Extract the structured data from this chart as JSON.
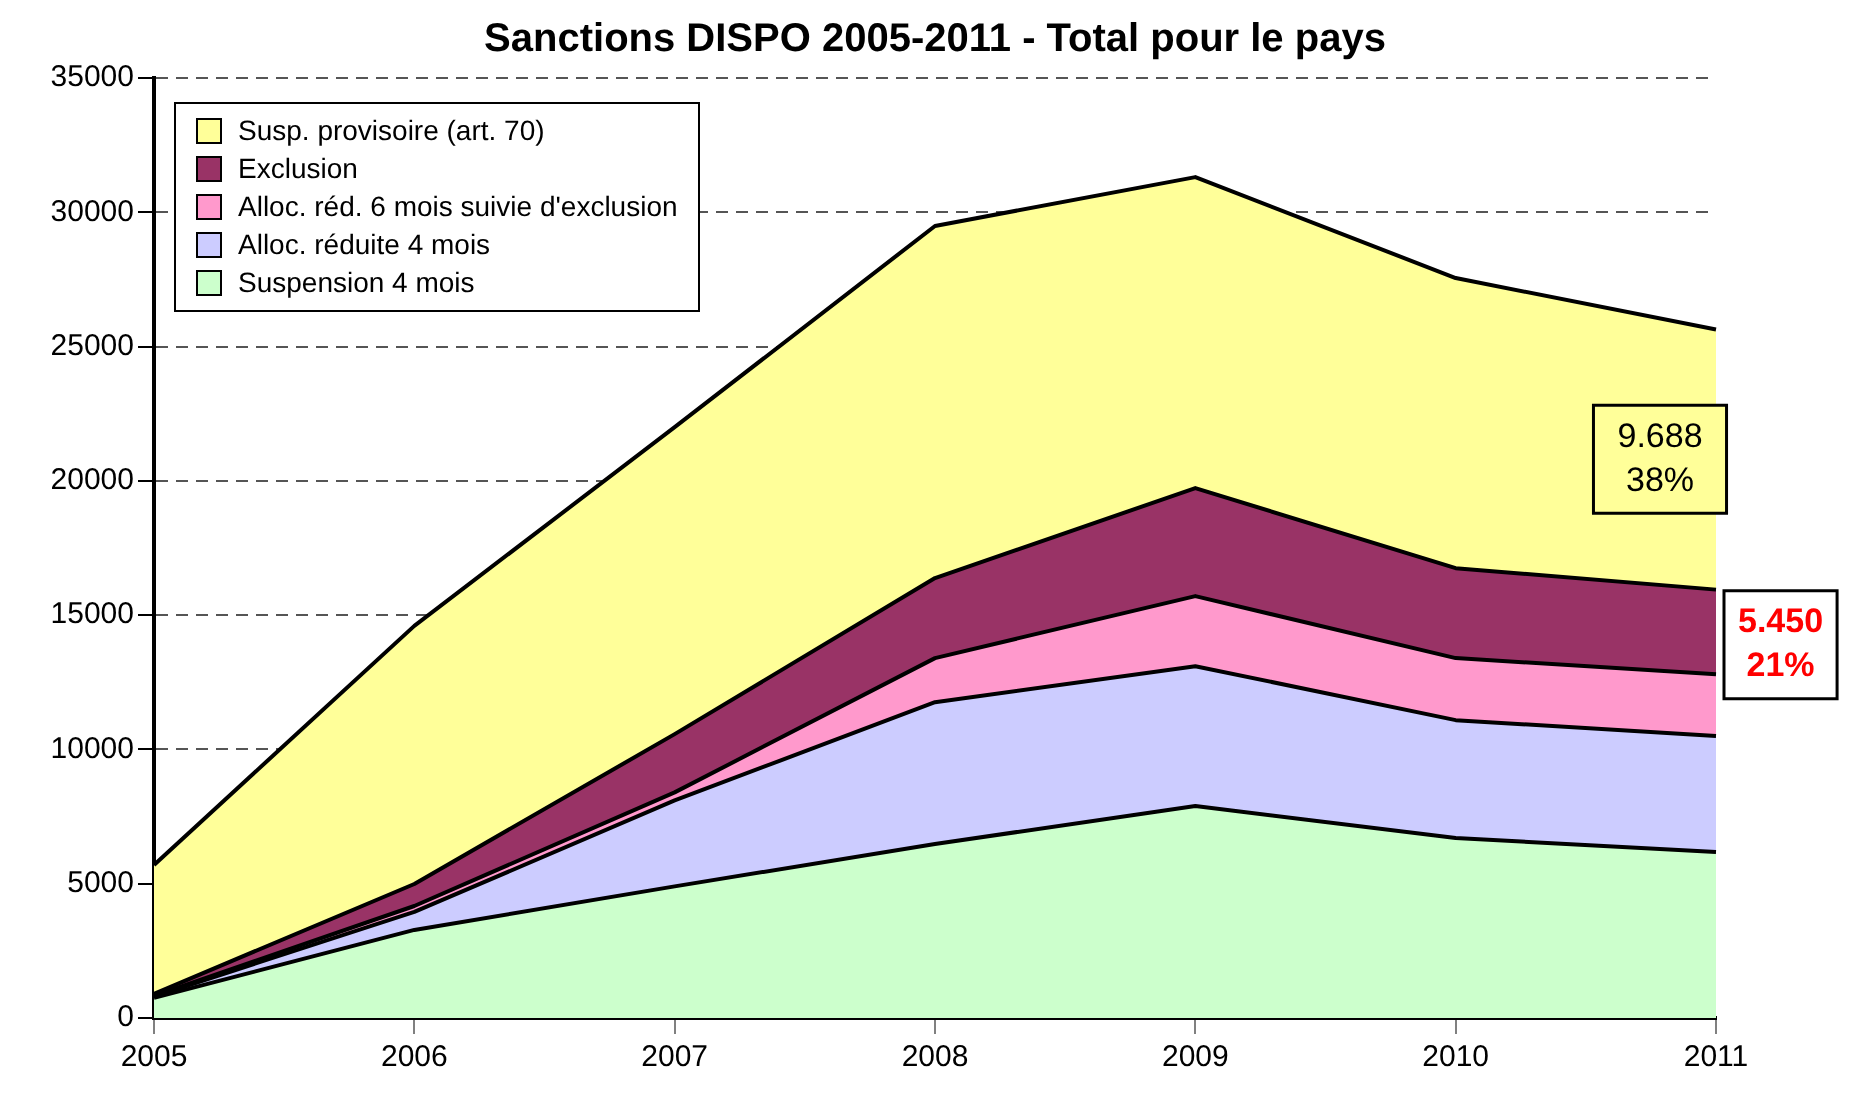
{
  "chart_data": {
    "type": "area",
    "title": "Sanctions DISPO 2005-2011 - Total pour le pays",
    "stacked": true,
    "categories": [
      "2005",
      "2006",
      "2007",
      "2008",
      "2009",
      "2010",
      "2011"
    ],
    "series": [
      {
        "name": "Suspension 4 mois",
        "color": "#ccffcc",
        "values": [
          750,
          3280,
          4900,
          6480,
          7890,
          6700,
          6180
        ]
      },
      {
        "name": "Alloc. réduite 4 mois",
        "color": "#ccccff",
        "values": [
          50,
          670,
          3200,
          5280,
          5210,
          4390,
          4320
        ]
      },
      {
        "name": "Alloc. réd. 6 mois suivie d'exclusion",
        "color": "#ff99cc",
        "values": [
          20,
          220,
          300,
          1640,
          2610,
          2310,
          2300
        ]
      },
      {
        "name": "Exclusion",
        "color": "#993366",
        "values": [
          80,
          820,
          2170,
          2980,
          4020,
          3350,
          3150
        ]
      },
      {
        "name": "Susp. provisoire (art. 70)",
        "color": "#ffff99",
        "values": [
          4800,
          9610,
          11430,
          13110,
          11580,
          10800,
          9688
        ]
      }
    ],
    "ylim": [
      0,
      35000
    ],
    "yticks": [
      0,
      5000,
      10000,
      15000,
      20000,
      25000,
      30000,
      35000
    ],
    "grid": "y",
    "legend": "top left",
    "annotations": [
      {
        "text": "9.688\n38%",
        "x": "2011",
        "y": 20800
      },
      {
        "text": "5.450\n21%",
        "x": "2011",
        "y": 13900
      }
    ]
  }
}
